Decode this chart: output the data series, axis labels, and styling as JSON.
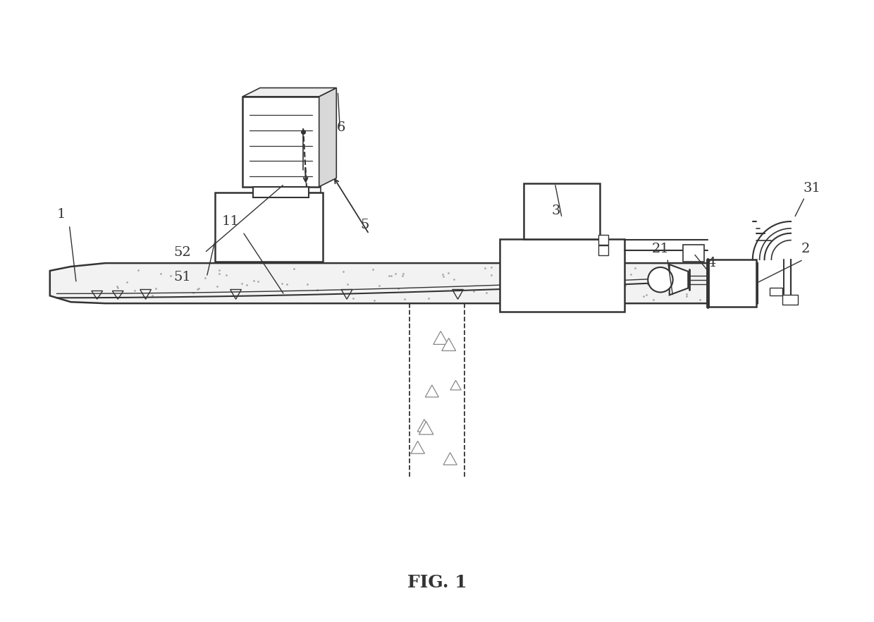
{
  "title": "FIG. 1",
  "bg_color": "#ffffff",
  "lc": "#333333",
  "gray_fill": "#e8e8e8",
  "dot_color": "#999999"
}
